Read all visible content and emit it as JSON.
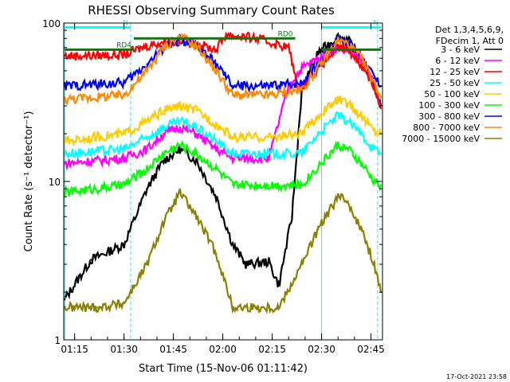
{
  "chart_data": {
    "type": "line",
    "title": "RHESSI Observing Summary Count Rates",
    "xlabel": "Start Time (15-Nov-06 01:11:42)",
    "ylabel": "Count Rate (s⁻¹ detector⁻¹)",
    "y_scale": "log",
    "ylim": [
      1,
      100
    ],
    "xlim": [
      "01:11:42",
      "02:48:30"
    ],
    "x_ticks": [
      "01:15",
      "01:30",
      "01:45",
      "02:00",
      "02:15",
      "02:30",
      "02:45"
    ],
    "y_ticks": [
      "1",
      "10",
      "100"
    ],
    "grid": false,
    "legend_position": "right",
    "legend_header": [
      "Det 1,3,4,5,6,9,",
      "FDecim 1, Att 0"
    ],
    "timestamp": "17-Oct-2021 23:58",
    "series": [
      {
        "name": "3 - 6 keV",
        "color": "#000000",
        "x": [
          "01:12",
          "01:20",
          "01:30",
          "01:37",
          "01:42",
          "01:47",
          "01:52",
          "01:58",
          "02:03",
          "02:07",
          "02:14",
          "02:17",
          "02:21",
          "02:24",
          "02:29",
          "02:35",
          "02:38",
          "02:42",
          "02:46",
          "02:48"
        ],
        "y": [
          1.8,
          3.2,
          4.0,
          9.0,
          13.5,
          16.0,
          13.5,
          8.0,
          4.0,
          3.0,
          3.1,
          2.2,
          6.0,
          38.0,
          65.0,
          82.0,
          78.0,
          60.0,
          40.0,
          30.0
        ]
      },
      {
        "name": "6 - 12 keV",
        "color": "#ff00ff",
        "x": [
          "01:12",
          "01:30",
          "01:37",
          "01:42",
          "01:47",
          "01:52",
          "01:58",
          "02:03",
          "02:14",
          "02:20",
          "02:24",
          "02:29",
          "02:35",
          "02:38",
          "02:42",
          "02:46",
          "02:48"
        ],
        "y": [
          13.0,
          14.0,
          16.0,
          20.0,
          22.0,
          20.0,
          16.0,
          14.0,
          14.0,
          40.0,
          52.0,
          60.0,
          70.0,
          68.0,
          58.0,
          42.0,
          30.0
        ]
      },
      {
        "name": "12 - 25 keV",
        "color": "#ff0000",
        "x": [
          "01:12",
          "01:30",
          "01:37",
          "01:42",
          "01:47",
          "01:52",
          "01:58",
          "02:01",
          "02:10",
          "02:20",
          "02:23",
          "02:29",
          "02:35",
          "02:38",
          "02:42",
          "02:46",
          "02:48"
        ],
        "y": [
          62.0,
          63.0,
          72.0,
          76.0,
          76.0,
          74.0,
          68.0,
          85.0,
          80.0,
          70.0,
          38.0,
          52.0,
          70.0,
          68.0,
          55.0,
          40.0,
          29.0
        ]
      },
      {
        "name": "25 - 50 keV",
        "color": "#00ffff",
        "x": [
          "01:12",
          "01:30",
          "01:37",
          "01:42",
          "01:47",
          "01:52",
          "01:58",
          "02:03",
          "02:14",
          "02:24",
          "02:29",
          "02:35",
          "02:38",
          "02:42",
          "02:46",
          "02:48"
        ],
        "y": [
          15.0,
          16.0,
          19.0,
          22.0,
          24.0,
          22.0,
          18.0,
          15.0,
          15.0,
          15.0,
          20.0,
          26.0,
          24.0,
          20.0,
          16.0,
          15.0
        ]
      },
      {
        "name": "50 - 100 keV",
        "color": "#ffcc00",
        "x": [
          "01:12",
          "01:30",
          "01:37",
          "01:42",
          "01:47",
          "01:52",
          "01:58",
          "02:03",
          "02:14",
          "02:24",
          "02:29",
          "02:35",
          "02:38",
          "02:42",
          "02:46",
          "02:48"
        ],
        "y": [
          18.0,
          20.0,
          24.0,
          28.0,
          30.0,
          28.0,
          23.0,
          19.0,
          19.0,
          20.0,
          26.0,
          33.0,
          31.0,
          26.0,
          21.0,
          20.0
        ]
      },
      {
        "name": "100 - 300 keV",
        "color": "#00ff00",
        "x": [
          "01:12",
          "01:30",
          "01:37",
          "01:42",
          "01:47",
          "01:52",
          "01:58",
          "02:03",
          "02:14",
          "02:24",
          "02:29",
          "02:35",
          "02:38",
          "02:42",
          "02:46",
          "02:48"
        ],
        "y": [
          8.5,
          9.5,
          12.0,
          15.0,
          17.0,
          15.0,
          12.0,
          9.5,
          9.5,
          9.5,
          12.5,
          17.0,
          16.0,
          13.0,
          10.0,
          9.5
        ]
      },
      {
        "name": "300 - 800 keV",
        "color": "#0000ff",
        "x": [
          "01:12",
          "01:30",
          "01:37",
          "01:42",
          "01:47",
          "01:52",
          "01:58",
          "02:03",
          "02:14",
          "02:24",
          "02:29",
          "02:35",
          "02:38",
          "02:42",
          "02:46",
          "02:48"
        ],
        "y": [
          40.0,
          42.0,
          55.0,
          70.0,
          78.0,
          72.0,
          55.0,
          40.0,
          40.0,
          42.0,
          55.0,
          80.0,
          76.0,
          62.0,
          45.0,
          40.0
        ]
      },
      {
        "name": "800 - 7000 keV",
        "color": "#ff8800",
        "x": [
          "01:12",
          "01:30",
          "01:37",
          "01:42",
          "01:47",
          "01:52",
          "01:58",
          "02:03",
          "02:14",
          "02:24",
          "02:29",
          "02:35",
          "02:38",
          "02:42",
          "02:46",
          "02:48"
        ],
        "y": [
          33.0,
          35.0,
          50.0,
          70.0,
          82.0,
          72.0,
          50.0,
          35.0,
          35.0,
          38.0,
          52.0,
          78.0,
          74.0,
          60.0,
          42.0,
          34.0
        ]
      },
      {
        "name": "7000 - 15000 keV",
        "color": "#8b8000",
        "x": [
          "01:12",
          "01:22",
          "01:30",
          "01:37",
          "01:42",
          "01:47",
          "01:52",
          "01:58",
          "02:03",
          "02:10",
          "02:17",
          "02:24",
          "02:29",
          "02:35",
          "02:38",
          "02:42",
          "02:46",
          "02:48"
        ],
        "y": [
          1.6,
          1.6,
          1.7,
          3.0,
          5.5,
          8.5,
          6.0,
          3.5,
          1.6,
          1.6,
          1.6,
          3.0,
          5.0,
          8.0,
          7.5,
          5.0,
          3.0,
          2.0
        ]
      }
    ],
    "annotations": [
      {
        "label": "N",
        "color": "#00ffff",
        "x_start": "01:12",
        "x_end": "01:32",
        "y": 94
      },
      {
        "label": "N",
        "color": "#00ffff",
        "x_start": "02:30",
        "x_end": "02:48",
        "y": 94
      },
      {
        "label": "RD0",
        "color": "#008000",
        "x_start": "01:33",
        "x_end": "02:22",
        "y": 80
      },
      {
        "label": "RD4",
        "color": "#008000",
        "x_start": "01:12",
        "x_end": "01:33",
        "y": 68
      },
      {
        "label": "",
        "color": "#008000",
        "x_start": "02:30",
        "x_end": "02:48",
        "y": 68
      }
    ],
    "vertical_markers": [
      {
        "x": "01:12",
        "color": "#00ffff",
        "style": "solid"
      },
      {
        "x": "01:32",
        "color": "#00ffff",
        "style": "dashed"
      },
      {
        "x": "02:30",
        "color": "#00ffff",
        "style": "solid"
      },
      {
        "x": "02:47",
        "color": "#00ffff",
        "style": "dashed"
      }
    ]
  }
}
